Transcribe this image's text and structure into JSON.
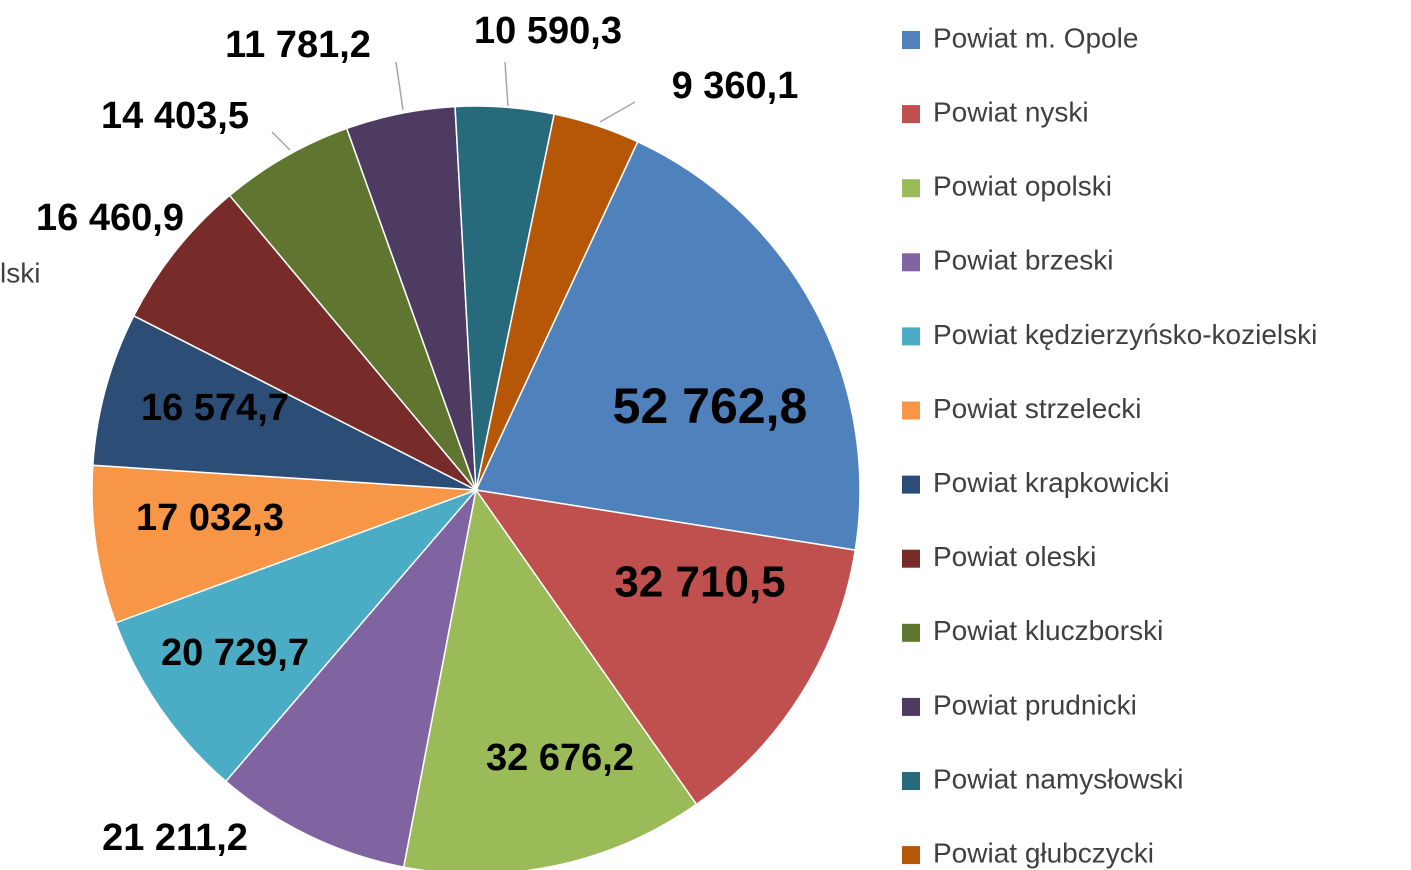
{
  "chart_data": {
    "type": "pie",
    "categories": [
      "Powiat m. Opole",
      "Powiat nyski",
      "Powiat opolski",
      "Powiat brzeski",
      "Powiat kędzierzyńsko-kozielski",
      "Powiat strzelecki",
      "Powiat krapkowicki",
      "Powiat oleski",
      "Powiat kluczborski",
      "Powiat prudnicki",
      "Powiat namysłowski",
      "Powiat głubczycki"
    ],
    "values": [
      52762.8,
      32710.5,
      32676.2,
      21211.2,
      20729.7,
      17032.3,
      16574.7,
      16460.9,
      14403.5,
      11781.2,
      10590.3,
      9360.1
    ],
    "value_labels": [
      "52 762,8",
      "32 710,5",
      "32 676,2",
      "21 211,2",
      "20 729,7",
      "17 032,3",
      "16 574,7",
      "16 460,9",
      "14 403,5",
      "11 781,2",
      "10 590,3",
      "9 360,1"
    ],
    "colors": [
      "#4f81bd",
      "#c0504d",
      "#9bbb59",
      "#8064a2",
      "#4bacc6",
      "#f79646",
      "#2c4d75",
      "#772c2a",
      "#5f7530",
      "#4d3b62",
      "#276a7c",
      "#b65708"
    ],
    "annotation": "lski",
    "legend": "right"
  }
}
